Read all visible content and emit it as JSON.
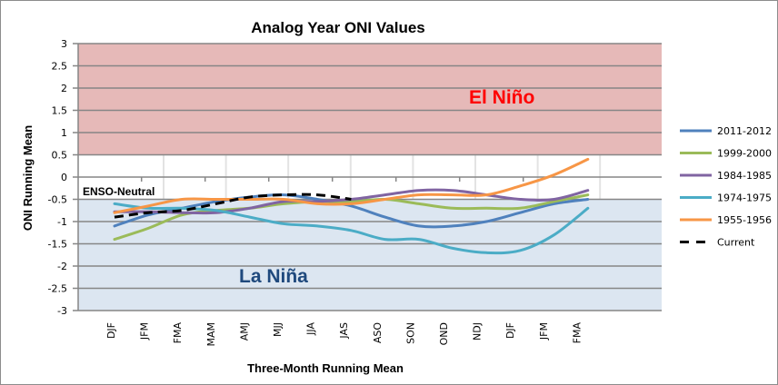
{
  "chart_data": {
    "type": "line",
    "title": "Analog  Year ONI Values",
    "xlabel": "Three-Month Running Mean",
    "ylabel": "ONI Running Mean",
    "ylim": [
      -3,
      3
    ],
    "yticks": [
      3,
      2.5,
      2,
      1.5,
      1,
      0.5,
      0,
      -0.5,
      -1,
      -1.5,
      -2,
      -2.5,
      -3
    ],
    "ytick_labels": [
      "3",
      "2.5",
      "2",
      "1.5",
      "1",
      "0.5",
      "0",
      "-0.5",
      "-1",
      "-1.5",
      "-2",
      "-2.5",
      "-3"
    ],
    "categories": [
      "DJF",
      "JFM",
      "FMA",
      "MAM",
      "AMJ",
      "MJJ",
      "JJA",
      "JAS",
      "ASO",
      "SON",
      "OND",
      "NDJ",
      "DJF",
      "JFM",
      "FMA"
    ],
    "grid": true,
    "legend_position": "right",
    "regions": [
      {
        "name": "El Niño",
        "from": 0.5,
        "to": 3,
        "color": "#e6b9b8",
        "label_color": "#ff0000"
      },
      {
        "name": "ENSO-Neutral",
        "from": -0.5,
        "to": 0.5,
        "color": "#ffffff",
        "label_color": "#000000"
      },
      {
        "name": "La Niña",
        "from": -3,
        "to": -0.5,
        "color": "#dce6f1",
        "label_color": "#1f497d"
      }
    ],
    "series": [
      {
        "name": "2011-2012",
        "color": "#4f81bd",
        "dashed": false,
        "values": [
          -1.1,
          -0.85,
          -0.7,
          -0.55,
          -0.45,
          -0.4,
          -0.5,
          -0.65,
          -0.9,
          -1.1,
          -1.1,
          -1.0,
          -0.8,
          -0.6,
          -0.5
        ]
      },
      {
        "name": "1999-2000",
        "color": "#9bbb59",
        "dashed": false,
        "values": [
          -1.4,
          -1.15,
          -0.85,
          -0.75,
          -0.7,
          -0.6,
          -0.55,
          -0.55,
          -0.5,
          -0.6,
          -0.7,
          -0.7,
          -0.7,
          -0.55,
          -0.4
        ]
      },
      {
        "name": "1984-1985",
        "color": "#8064a2",
        "dashed": false,
        "values": [
          -0.78,
          -0.78,
          -0.8,
          -0.8,
          -0.7,
          -0.55,
          -0.55,
          -0.5,
          -0.4,
          -0.3,
          -0.3,
          -0.4,
          -0.5,
          -0.5,
          -0.3
        ]
      },
      {
        "name": "1974-1975",
        "color": "#4bacc6",
        "dashed": false,
        "values": [
          -0.6,
          -0.7,
          -0.7,
          -0.75,
          -0.9,
          -1.05,
          -1.1,
          -1.2,
          -1.4,
          -1.4,
          -1.6,
          -1.7,
          -1.65,
          -1.3,
          -0.7
        ]
      },
      {
        "name": "1955-1956",
        "color": "#f79646",
        "dashed": false,
        "values": [
          -0.8,
          -0.65,
          -0.5,
          -0.5,
          -0.5,
          -0.5,
          -0.6,
          -0.6,
          -0.5,
          -0.4,
          -0.4,
          -0.4,
          -0.2,
          0.05,
          0.4
        ]
      },
      {
        "name": "Current",
        "color": "#000000",
        "dashed": true,
        "values": [
          -0.9,
          -0.8,
          -0.75,
          -0.6,
          -0.45,
          -0.4,
          -0.4,
          -0.5,
          null,
          null,
          null,
          null,
          null,
          null,
          null
        ]
      }
    ]
  }
}
